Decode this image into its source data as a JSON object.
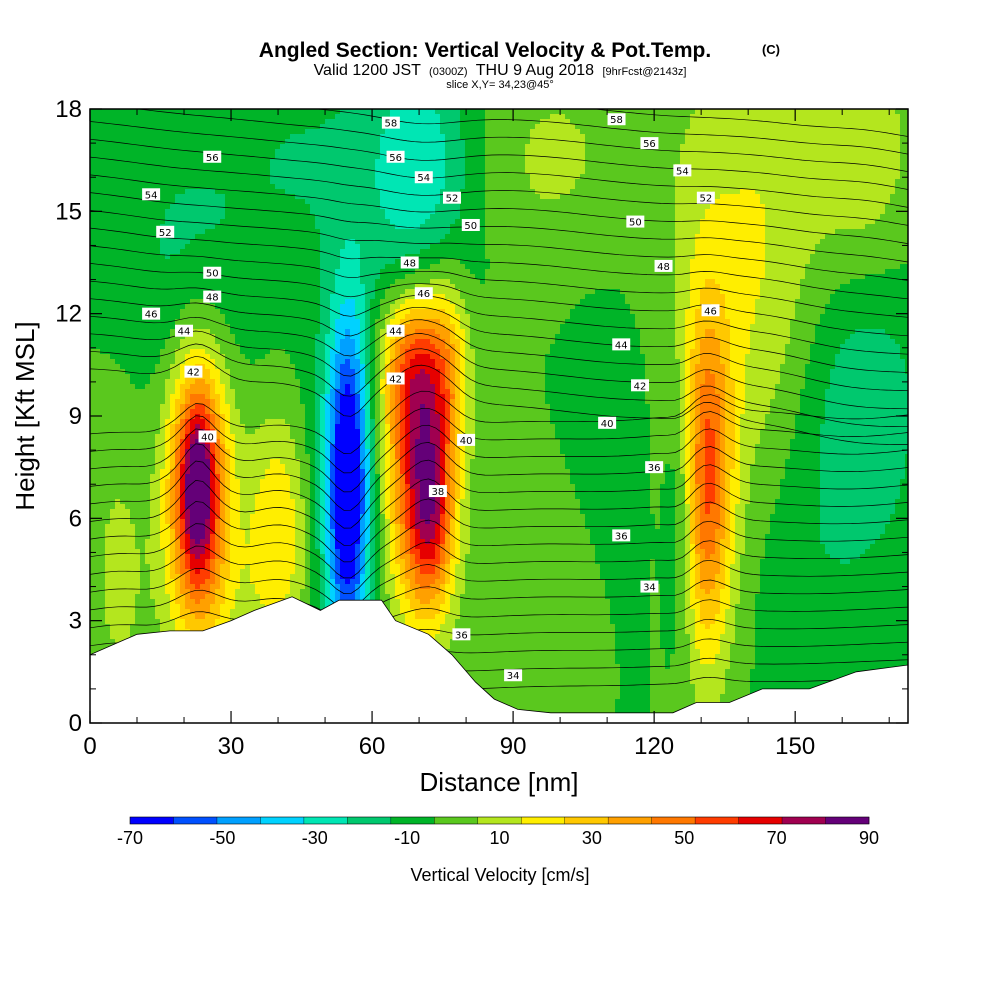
{
  "title": {
    "main": "Angled Section: Vertical Velocity & Pot.Temp.",
    "unit_tag": "(C)",
    "valid_prefix": "Valid 1200 JST",
    "valid_utc": "(0300Z)",
    "valid_date": "THU 9 Aug 2018",
    "forecast": "[9hrFcst@2143z]",
    "slice": "slice X,Y= 34,23@45°"
  },
  "chart_data": {
    "type": "heatmap",
    "xlabel": "Distance [nm]",
    "ylabel": "Height [Kft MSL]",
    "xlim": [
      0,
      174
    ],
    "ylim": [
      0,
      18
    ],
    "x_ticks": [
      0,
      30,
      60,
      90,
      120,
      150
    ],
    "y_ticks": [
      0,
      3,
      6,
      9,
      12,
      15,
      18
    ],
    "grid": false,
    "colorbar": {
      "label": "Vertical Velocity [cm/s]",
      "tick_values": [
        -70,
        -50,
        -30,
        -10,
        10,
        30,
        50,
        70,
        90
      ],
      "levels": [
        -70,
        -60,
        -50,
        -40,
        -30,
        -20,
        -10,
        0,
        10,
        20,
        30,
        40,
        50,
        60,
        70,
        80,
        90
      ],
      "colors": [
        "#0000ff",
        "#0050ff",
        "#00a0ff",
        "#00d2ff",
        "#00e6b4",
        "#00c86e",
        "#00b428",
        "#5ac81e",
        "#b4e61e",
        "#ffee00",
        "#ffc800",
        "#ffa000",
        "#ff7800",
        "#ff3c00",
        "#e60000",
        "#a00050",
        "#640078"
      ]
    },
    "terrain": [
      [
        0,
        2.0
      ],
      [
        5,
        2.3
      ],
      [
        10,
        2.6
      ],
      [
        17,
        2.7
      ],
      [
        24,
        2.7
      ],
      [
        30,
        3.0
      ],
      [
        35,
        3.3
      ],
      [
        43,
        3.7
      ],
      [
        49,
        3.3
      ],
      [
        53,
        3.6
      ],
      [
        62,
        3.6
      ],
      [
        65,
        3.0
      ],
      [
        72,
        2.6
      ],
      [
        77,
        2.0
      ],
      [
        82,
        1.2
      ],
      [
        86,
        0.7
      ],
      [
        91,
        0.4
      ],
      [
        98,
        0.3
      ],
      [
        110,
        0.3
      ],
      [
        124,
        0.3
      ],
      [
        129,
        0.6
      ],
      [
        136,
        0.6
      ],
      [
        143,
        1.0
      ],
      [
        153,
        1.0
      ],
      [
        163,
        1.5
      ],
      [
        174,
        1.7
      ]
    ],
    "vertical_velocity_cells": [
      {
        "x": 23,
        "y": 6.8,
        "sx": 4.5,
        "sy": 2.8,
        "w": 85
      },
      {
        "x": 23,
        "y": 7.0,
        "sx": 2.2,
        "sy": 1.5,
        "w": 30
      },
      {
        "x": 40,
        "y": 6.0,
        "sx": 5,
        "sy": 2.2,
        "w": 28
      },
      {
        "x": 55,
        "y": 7.0,
        "sx": 3.2,
        "sy": 3.6,
        "w": -72
      },
      {
        "x": 52,
        "y": 6.0,
        "sx": 5,
        "sy": 4.0,
        "w": -15
      },
      {
        "x": 70,
        "y": 7.5,
        "sx": 4.8,
        "sy": 3.0,
        "w": 70
      },
      {
        "x": 73,
        "y": 6.0,
        "sx": 3.2,
        "sy": 1.8,
        "w": 35
      },
      {
        "x": 68,
        "y": 10.5,
        "sx": 4.5,
        "sy": 1.5,
        "w": 35
      },
      {
        "x": 76,
        "y": 10.5,
        "sx": 3.5,
        "sy": 2.0,
        "w": 32
      },
      {
        "x": 131,
        "y": 7.0,
        "sx": 4.0,
        "sy": 3.6,
        "w": 60
      },
      {
        "x": 126,
        "y": 6.5,
        "sx": 2.5,
        "sy": 3.0,
        "w": -22
      },
      {
        "x": 142,
        "y": 13.5,
        "sx": 12,
        "sy": 5,
        "w": 22
      },
      {
        "x": 165,
        "y": 16.0,
        "sx": 8,
        "sy": 3,
        "w": 20
      },
      {
        "x": 163,
        "y": 10.0,
        "sx": 10,
        "sy": 4,
        "w": -22
      },
      {
        "x": 70,
        "y": 16.0,
        "sx": 8,
        "sy": 3,
        "w": -30
      },
      {
        "x": 45,
        "y": 16.5,
        "sx": 12,
        "sy": 2.5,
        "w": -10
      },
      {
        "x": 20,
        "y": 13.5,
        "sx": 10,
        "sy": 3,
        "w": -12
      },
      {
        "x": 100,
        "y": 16.5,
        "sx": 15,
        "sy": 2.5,
        "w": 12
      },
      {
        "x": 110,
        "y": 9.0,
        "sx": 8,
        "sy": 5,
        "w": -5
      },
      {
        "x": 95,
        "y": 4.0,
        "sx": 12,
        "sy": 3,
        "w": 6
      },
      {
        "x": 150,
        "y": 4.5,
        "sx": 8,
        "sy": 3,
        "w": -6
      },
      {
        "x": 35,
        "y": 3.5,
        "sx": 12,
        "sy": 1.5,
        "w": 8
      },
      {
        "x": 6,
        "y": 4.5,
        "sx": 5,
        "sy": 3.5,
        "w": 12
      }
    ],
    "potential_temperature": {
      "contour_interval": 1,
      "labeled_isotherms": [
        {
          "value": 58,
          "label": "58",
          "x": 64,
          "y": 17.6
        },
        {
          "value": 58,
          "label": "58",
          "x": 112,
          "y": 17.7
        },
        {
          "value": 56,
          "label": "56",
          "x": 26,
          "y": 16.6
        },
        {
          "value": 56,
          "label": "56",
          "x": 65,
          "y": 16.6
        },
        {
          "value": 56,
          "label": "56",
          "x": 119,
          "y": 17.0
        },
        {
          "value": 54,
          "label": "54",
          "x": 13,
          "y": 15.5
        },
        {
          "value": 54,
          "label": "54",
          "x": 71,
          "y": 16.0
        },
        {
          "value": 54,
          "label": "54",
          "x": 126,
          "y": 16.2
        },
        {
          "value": 52,
          "label": "52",
          "x": 16,
          "y": 14.4
        },
        {
          "value": 52,
          "label": "52",
          "x": 77,
          "y": 15.4
        },
        {
          "value": 52,
          "label": "52",
          "x": 131,
          "y": 15.4
        },
        {
          "value": 50,
          "label": "50",
          "x": 26,
          "y": 13.2
        },
        {
          "value": 50,
          "label": "50",
          "x": 81,
          "y": 14.6
        },
        {
          "value": 50,
          "label": "50",
          "x": 116,
          "y": 14.7
        },
        {
          "value": 48,
          "label": "48",
          "x": 26,
          "y": 12.5
        },
        {
          "value": 48,
          "label": "48",
          "x": 68,
          "y": 13.5
        },
        {
          "value": 48,
          "label": "48",
          "x": 122,
          "y": 13.4
        },
        {
          "value": 46,
          "label": "46",
          "x": 13,
          "y": 12.0
        },
        {
          "value": 46,
          "label": "46",
          "x": 71,
          "y": 12.6
        },
        {
          "value": 46,
          "label": "46",
          "x": 132,
          "y": 12.1
        },
        {
          "value": 44,
          "label": "44",
          "x": 20,
          "y": 11.5
        },
        {
          "value": 44,
          "label": "44",
          "x": 65,
          "y": 11.5
        },
        {
          "value": 44,
          "label": "44",
          "x": 113,
          "y": 11.1
        },
        {
          "value": 42,
          "label": "42",
          "x": 22,
          "y": 10.3
        },
        {
          "value": 42,
          "label": "42",
          "x": 65,
          "y": 10.1
        },
        {
          "value": 42,
          "label": "42",
          "x": 117,
          "y": 9.9
        },
        {
          "value": 40,
          "label": "40",
          "x": 25,
          "y": 8.4
        },
        {
          "value": 40,
          "label": "40",
          "x": 80,
          "y": 8.3
        },
        {
          "value": 40,
          "label": "40",
          "x": 110,
          "y": 8.8
        },
        {
          "value": 38,
          "label": "38",
          "x": 74,
          "y": 6.8
        },
        {
          "value": 36,
          "label": "36",
          "x": 120,
          "y": 7.5
        },
        {
          "value": 36,
          "label": "36",
          "x": 113,
          "y": 5.5
        },
        {
          "value": 36,
          "label": "36",
          "x": 79,
          "y": 2.6
        },
        {
          "value": 34,
          "label": "34",
          "x": 119,
          "y": 4.0
        },
        {
          "value": 34,
          "label": "34",
          "x": 90,
          "y": 1.4
        }
      ]
    }
  }
}
